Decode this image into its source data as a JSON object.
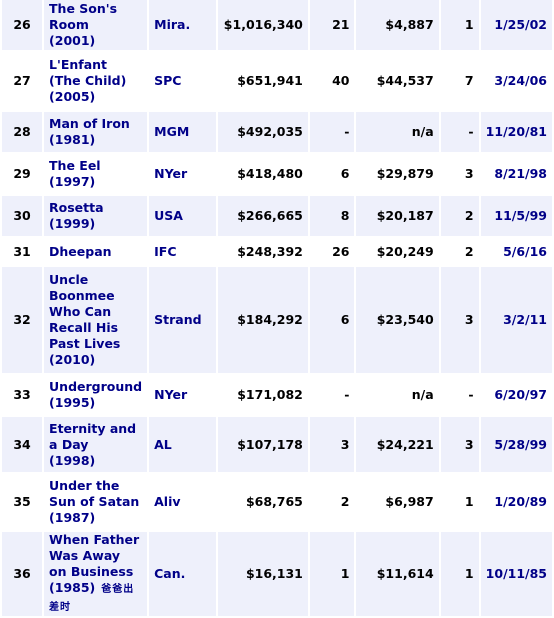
{
  "rows": [
    {
      "rank": "26",
      "title_lines": [
        "The Son's",
        "Room",
        "(2001)"
      ],
      "dist": "Mira.",
      "gross": "$1,016,340",
      "theaters": "21",
      "opening": "$4,887",
      "opening_theaters": "1",
      "date": "1/25/02"
    },
    {
      "rank": "27",
      "title_lines": [
        "L'Enfant",
        "(The Child)",
        "(2005)"
      ],
      "dist": "SPC",
      "gross": "$651,941",
      "theaters": "40",
      "opening": "$44,537",
      "opening_theaters": "7",
      "date": "3/24/06"
    },
    {
      "rank": "28",
      "title_lines": [
        "Man of Iron",
        "(1981)"
      ],
      "dist": "MGM",
      "gross": "$492,035",
      "theaters": "-",
      "opening": "n/a",
      "opening_theaters": "-",
      "date": "11/20/81"
    },
    {
      "rank": "29",
      "title_lines": [
        "The Eel",
        "(1997)"
      ],
      "dist": "NYer",
      "gross": "$418,480",
      "theaters": "6",
      "opening": "$29,879",
      "opening_theaters": "3",
      "date": "8/21/98"
    },
    {
      "rank": "30",
      "title_lines": [
        "Rosetta",
        "(1999)"
      ],
      "dist": "USA",
      "gross": "$266,665",
      "theaters": "8",
      "opening": "$20,187",
      "opening_theaters": "2",
      "date": "11/5/99"
    },
    {
      "rank": "31",
      "title_lines": [
        "Dheepan"
      ],
      "dist": "IFC",
      "gross": "$248,392",
      "theaters": "26",
      "opening": "$20,249",
      "opening_theaters": "2",
      "date": "5/6/16"
    },
    {
      "rank": "32",
      "title_lines": [
        "Uncle",
        "Boonmee",
        "Who Can",
        "Recall His",
        "Past Lives",
        "(2010)"
      ],
      "dist": "Strand",
      "gross": "$184,292",
      "theaters": "6",
      "opening": "$23,540",
      "opening_theaters": "3",
      "date": "3/2/11"
    },
    {
      "rank": "33",
      "title_lines": [
        "Underground",
        "(1995)"
      ],
      "dist": "NYer",
      "gross": "$171,082",
      "theaters": "-",
      "opening": "n/a",
      "opening_theaters": "-",
      "date": "6/20/97"
    },
    {
      "rank": "34",
      "title_lines": [
        "Eternity and",
        "a Day",
        "(1998)"
      ],
      "dist": "AL",
      "gross": "$107,178",
      "theaters": "3",
      "opening": "$24,221",
      "opening_theaters": "3",
      "date": "5/28/99"
    },
    {
      "rank": "35",
      "title_lines": [
        "Under the",
        "Sun of Satan",
        "(1987)"
      ],
      "dist": "Aliv",
      "gross": "$68,765",
      "theaters": "2",
      "opening": "$6,987",
      "opening_theaters": "1",
      "date": "1/20/89"
    },
    {
      "rank": "36",
      "title_lines": [
        "When Father",
        "Was Away",
        "on Business",
        "(1985)"
      ],
      "dist": "Can.",
      "gross": "$16,131",
      "theaters": "1",
      "opening": "$11,614",
      "opening_theaters": "1",
      "date": "10/11/85",
      "annotation": "爸爸出差时"
    }
  ]
}
